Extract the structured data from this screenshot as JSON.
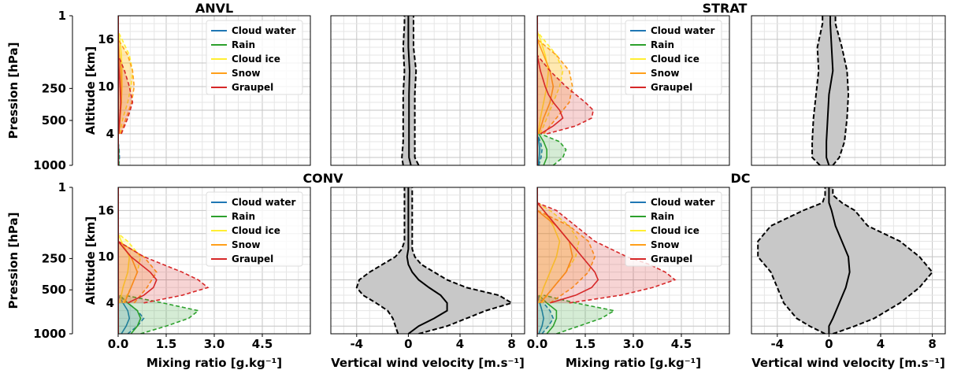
{
  "colors": {
    "cloud_water": "#1f77b4",
    "rain": "#2ca02c",
    "cloud_ice": "#ffee33",
    "snow": "#ff9f1a",
    "graupel": "#d62728",
    "wind_fill": "#c8c8c8"
  },
  "chart_data": [
    {
      "panel": "ANVL",
      "type": "line",
      "title": "ANVL",
      "xlabel": "",
      "ylabel": "Altitude [km]",
      "ylabel_outer": "Pression [hPa]",
      "pressure_ticks": [
        "1",
        "250",
        "500",
        "1000"
      ],
      "altitude_ticks": [
        "16",
        "10",
        "4"
      ],
      "xlim": [
        0,
        6
      ],
      "ylim": [
        0,
        19
      ],
      "legend_placement": "upper-right",
      "series": [
        {
          "name": "Cloud water",
          "color_key": "cloud_water",
          "alt": [
            0,
            1,
            2,
            3
          ],
          "mean": [
            0.01,
            0.02,
            0.02,
            0
          ],
          "upper": [
            0.02,
            0.04,
            0.03,
            0
          ]
        },
        {
          "name": "Rain",
          "color_key": "rain",
          "alt": [
            0,
            1,
            2,
            3
          ],
          "mean": [
            0.01,
            0.01,
            0.01,
            0
          ],
          "upper": [
            0.02,
            0.02,
            0.02,
            0
          ]
        },
        {
          "name": "Cloud ice",
          "color_key": "cloud_ice",
          "alt": [
            4,
            6,
            8,
            10,
            12,
            14,
            16,
            17
          ],
          "mean": [
            0.02,
            0.06,
            0.1,
            0.12,
            0.12,
            0.1,
            0.05,
            0
          ],
          "upper": [
            0.05,
            0.15,
            0.3,
            0.4,
            0.45,
            0.35,
            0.12,
            0
          ]
        },
        {
          "name": "Snow",
          "color_key": "snow",
          "alt": [
            4,
            6,
            8,
            10,
            12,
            14,
            16
          ],
          "mean": [
            0.02,
            0.06,
            0.1,
            0.1,
            0.08,
            0.04,
            0
          ],
          "upper": [
            0.08,
            0.25,
            0.42,
            0.5,
            0.45,
            0.3,
            0
          ]
        },
        {
          "name": "Graupel",
          "color_key": "graupel",
          "alt": [
            4,
            6,
            8,
            10,
            12,
            14
          ],
          "mean": [
            0.02,
            0.05,
            0.08,
            0.06,
            0.03,
            0
          ],
          "upper": [
            0.1,
            0.3,
            0.45,
            0.35,
            0.2,
            0
          ]
        }
      ]
    },
    {
      "panel": "ANVL",
      "type": "area",
      "title": "",
      "xlabel": "",
      "xlim": [
        -6,
        9
      ],
      "ylim": [
        0,
        19
      ],
      "series": [
        {
          "name": "",
          "alt": [
            0,
            1,
            3,
            6,
            9,
            12,
            15,
            18,
            19
          ],
          "mean": [
            0.2,
            0.05,
            0.05,
            0.05,
            0.05,
            0.1,
            0.0,
            0.0,
            0.0
          ],
          "lower": [
            -0.4,
            -0.5,
            -0.4,
            -0.4,
            -0.4,
            -0.3,
            -0.4,
            -0.3,
            -0.3
          ],
          "upper": [
            0.8,
            0.5,
            0.5,
            0.5,
            0.5,
            0.6,
            0.4,
            0.4,
            0.4
          ]
        }
      ]
    },
    {
      "panel": "STRAT",
      "type": "line",
      "title": "STRAT",
      "xlabel": "",
      "xlim": [
        0,
        6
      ],
      "ylim": [
        0,
        19
      ],
      "legend_placement": "upper-right",
      "series": [
        {
          "name": "Cloud water",
          "color_key": "cloud_water",
          "alt": [
            0,
            1,
            2,
            3,
            4
          ],
          "mean": [
            0.03,
            0.06,
            0.08,
            0.05,
            0
          ],
          "upper": [
            0.05,
            0.12,
            0.15,
            0.1,
            0
          ]
        },
        {
          "name": "Rain",
          "color_key": "rain",
          "alt": [
            0,
            1,
            2,
            3,
            4
          ],
          "mean": [
            0.2,
            0.3,
            0.3,
            0.2,
            0.05
          ],
          "upper": [
            0.5,
            0.8,
            0.9,
            0.7,
            0.1
          ]
        },
        {
          "name": "Cloud ice",
          "color_key": "cloud_ice",
          "alt": [
            4,
            6,
            8,
            10,
            12,
            14,
            16,
            17
          ],
          "mean": [
            0.03,
            0.1,
            0.2,
            0.3,
            0.35,
            0.25,
            0.1,
            0
          ],
          "upper": [
            0.1,
            0.3,
            0.5,
            0.7,
            0.8,
            0.6,
            0.2,
            0
          ]
        },
        {
          "name": "Snow",
          "color_key": "snow",
          "alt": [
            4,
            6,
            8,
            10,
            12,
            14,
            16
          ],
          "mean": [
            0.05,
            0.2,
            0.4,
            0.5,
            0.4,
            0.2,
            0
          ],
          "upper": [
            0.2,
            0.6,
            1.0,
            1.1,
            1.0,
            0.6,
            0
          ]
        },
        {
          "name": "Graupel",
          "color_key": "graupel",
          "alt": [
            4,
            5,
            6,
            7,
            8,
            9,
            10,
            12,
            14
          ],
          "mean": [
            0.1,
            0.5,
            0.8,
            0.7,
            0.5,
            0.35,
            0.25,
            0.1,
            0
          ],
          "upper": [
            0.3,
            1.2,
            1.7,
            1.75,
            1.5,
            1.2,
            0.9,
            0.4,
            0
          ]
        }
      ]
    },
    {
      "panel": "STRAT",
      "type": "area",
      "title": "",
      "xlabel": "",
      "xlim": [
        -6,
        9
      ],
      "ylim": [
        0,
        19
      ],
      "series": [
        {
          "name": "",
          "alt": [
            0,
            1,
            3,
            6,
            9,
            12,
            15,
            18,
            19
          ],
          "mean": [
            0.0,
            -0.2,
            -0.2,
            -0.1,
            0.0,
            0.3,
            0.2,
            0.1,
            0.1
          ],
          "lower": [
            -0.7,
            -1.3,
            -1.3,
            -1.2,
            -1.0,
            -0.8,
            -0.9,
            -0.5,
            -0.5
          ],
          "upper": [
            0.3,
            0.8,
            1.2,
            1.4,
            1.5,
            1.4,
            1.0,
            0.5,
            0.5
          ]
        }
      ]
    },
    {
      "panel": "CONV",
      "type": "line",
      "title": "CONV",
      "xlabel": "Mixing ratio [g.kg⁻¹]",
      "xlim": [
        0,
        6
      ],
      "ylim": [
        0,
        19
      ],
      "xticks": [
        "0.0",
        "1.5",
        "3.0",
        "4.5"
      ],
      "legend_placement": "upper-right",
      "series": [
        {
          "name": "Cloud water",
          "color_key": "cloud_water",
          "alt": [
            0,
            1,
            2,
            3,
            4,
            5
          ],
          "mean": [
            0.1,
            0.25,
            0.35,
            0.3,
            0.15,
            0
          ],
          "upper": [
            0.3,
            0.6,
            0.8,
            0.6,
            0.3,
            0
          ]
        },
        {
          "name": "Rain",
          "color_key": "rain",
          "alt": [
            0,
            1,
            2,
            3,
            4,
            5
          ],
          "mean": [
            0.4,
            0.6,
            0.7,
            0.6,
            0.3,
            0.05
          ],
          "upper": [
            0.7,
            1.5,
            2.2,
            2.5,
            1.4,
            0.2
          ]
        },
        {
          "name": "Cloud ice",
          "color_key": "cloud_ice",
          "alt": [
            4,
            6,
            8,
            10,
            12,
            13
          ],
          "mean": [
            0.05,
            0.15,
            0.3,
            0.35,
            0.1,
            0
          ],
          "upper": [
            0.15,
            0.4,
            0.6,
            0.7,
            0.3,
            0
          ]
        },
        {
          "name": "Snow",
          "color_key": "snow",
          "alt": [
            4,
            6,
            8,
            10,
            12
          ],
          "mean": [
            0.2,
            0.4,
            0.6,
            0.4,
            0
          ],
          "upper": [
            0.5,
            0.9,
            1.2,
            0.8,
            0
          ]
        },
        {
          "name": "Graupel",
          "color_key": "graupel",
          "alt": [
            4,
            5,
            6,
            7,
            8,
            9,
            10,
            11,
            12
          ],
          "mean": [
            0.3,
            0.8,
            1.1,
            1.2,
            1.0,
            0.7,
            0.4,
            0.2,
            0
          ],
          "upper": [
            0.8,
            2.0,
            2.8,
            2.5,
            2.0,
            1.4,
            0.8,
            0.4,
            0
          ]
        }
      ]
    },
    {
      "panel": "CONV",
      "type": "area",
      "title": "",
      "xlabel": "Vertical wind velocity [m.s⁻¹]",
      "xlim": [
        -6,
        9
      ],
      "ylim": [
        0,
        19
      ],
      "xticks": [
        "-4",
        "0",
        "4",
        "8"
      ],
      "series": [
        {
          "name": "",
          "alt": [
            0,
            1,
            2,
            3,
            4,
            5,
            6,
            7,
            8,
            9,
            10,
            11,
            12,
            14,
            16,
            18,
            19
          ],
          "mean": [
            0.0,
            0.8,
            2.0,
            3.0,
            3.0,
            2.5,
            1.6,
            0.8,
            0.3,
            0.0,
            -0.1,
            0.0,
            0.0,
            0.0,
            0.0,
            0.0,
            0.0
          ],
          "lower": [
            -0.8,
            -1.0,
            -1.2,
            -1.6,
            -2.5,
            -3.5,
            -4.0,
            -3.8,
            -3.0,
            -2.0,
            -1.0,
            -0.5,
            -0.3,
            -0.3,
            -0.3,
            -0.3,
            -0.3
          ],
          "upper": [
            0.8,
            3.0,
            4.5,
            6.0,
            8.0,
            7.0,
            4.5,
            3.0,
            2.0,
            1.0,
            0.5,
            0.3,
            0.3,
            0.3,
            0.3,
            0.3,
            0.3
          ]
        }
      ]
    },
    {
      "panel": "DC",
      "type": "line",
      "title": "DC",
      "xlabel": "Mixing ratio [g.kg⁻¹]",
      "xlim": [
        0,
        6
      ],
      "ylim": [
        0,
        19
      ],
      "xticks": [
        "0.0",
        "1.5",
        "3.0",
        "4.5"
      ],
      "legend_placement": "upper-right",
      "series": [
        {
          "name": "Cloud water",
          "color_key": "cloud_water",
          "alt": [
            0,
            1,
            2,
            3,
            4,
            5
          ],
          "mean": [
            0.05,
            0.15,
            0.2,
            0.15,
            0.08,
            0
          ],
          "upper": [
            0.15,
            0.35,
            0.5,
            0.4,
            0.2,
            0
          ]
        },
        {
          "name": "Rain",
          "color_key": "rain",
          "alt": [
            0,
            1,
            2,
            3,
            4,
            5
          ],
          "mean": [
            0.3,
            0.5,
            0.6,
            0.6,
            0.3,
            0.05
          ],
          "upper": [
            0.6,
            1.3,
            2.0,
            2.4,
            1.2,
            0.2
          ]
        },
        {
          "name": "Cloud ice",
          "color_key": "cloud_ice",
          "alt": [
            4,
            6,
            8,
            10,
            12,
            14,
            16,
            17
          ],
          "mean": [
            0.05,
            0.2,
            0.4,
            0.6,
            0.7,
            0.5,
            0.2,
            0
          ],
          "upper": [
            0.15,
            0.5,
            0.9,
            1.2,
            1.3,
            1.0,
            0.4,
            0
          ]
        },
        {
          "name": "Snow",
          "color_key": "snow",
          "alt": [
            4,
            6,
            8,
            10,
            12,
            14,
            16
          ],
          "mean": [
            0.1,
            0.5,
            0.9,
            1.1,
            1.0,
            0.6,
            0
          ],
          "upper": [
            0.4,
            1.1,
            1.6,
            1.8,
            1.6,
            1.0,
            0
          ]
        },
        {
          "name": "Graupel",
          "color_key": "graupel",
          "alt": [
            4,
            5,
            6,
            7,
            8,
            9,
            10,
            11,
            12,
            14,
            16,
            17
          ],
          "mean": [
            0.4,
            1.2,
            1.7,
            1.9,
            1.8,
            1.6,
            1.4,
            1.2,
            1.0,
            0.6,
            0.2,
            0
          ],
          "upper": [
            1.0,
            2.6,
            3.6,
            4.3,
            4.0,
            3.5,
            2.8,
            2.3,
            1.8,
            1.2,
            0.6,
            0
          ]
        }
      ]
    },
    {
      "panel": "DC",
      "type": "area",
      "title": "",
      "xlabel": "Vertical wind velocity [m.s⁻¹]",
      "xlim": [
        -6,
        9
      ],
      "ylim": [
        0,
        19
      ],
      "xticks": [
        "-4",
        "0",
        "4",
        "8"
      ],
      "series": [
        {
          "name": "",
          "alt": [
            0,
            1,
            2,
            4,
            6,
            8,
            10,
            12,
            14,
            16,
            17,
            18,
            19
          ],
          "mean": [
            0.0,
            0.0,
            0.3,
            0.8,
            1.3,
            1.6,
            1.5,
            1.0,
            0.5,
            0.2,
            0.0,
            0.0,
            0.0
          ],
          "lower": [
            -0.3,
            -1.5,
            -2.5,
            -3.5,
            -4.0,
            -4.5,
            -5.5,
            -5.5,
            -4.5,
            -2.0,
            -0.5,
            -0.3,
            -0.3
          ],
          "upper": [
            0.3,
            2.0,
            3.5,
            5.5,
            7.0,
            8.0,
            7.0,
            5.5,
            3.0,
            2.0,
            1.0,
            0.3,
            0.3
          ]
        }
      ]
    }
  ],
  "labels": {
    "top_pressure_ticks": [
      "1",
      "250",
      "500",
      "1000"
    ],
    "bottom_pressure_ticks": [
      "1",
      "250",
      "500",
      "1000"
    ],
    "pressure_label": "Pression [hPa]",
    "altitude_label": "Altitude [km]",
    "mixing_xlabel": "Mixing ratio [g.kg⁻¹]",
    "wind_xlabel": "Vertical wind velocity [m.s⁻¹]",
    "legend": [
      "Cloud water",
      "Rain",
      "Cloud ice",
      "Snow",
      "Graupel"
    ]
  }
}
